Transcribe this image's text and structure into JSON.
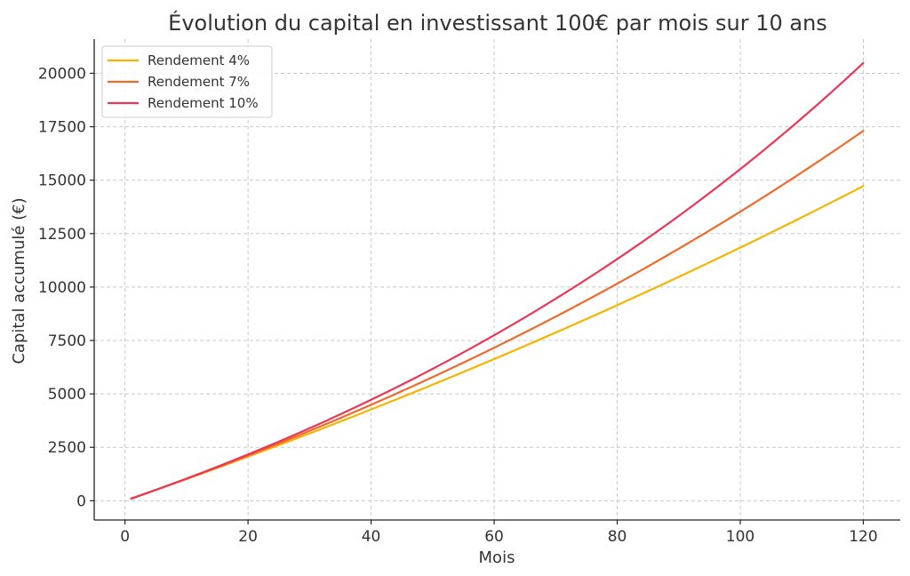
{
  "chart_data": {
    "type": "line",
    "title": "Évolution du capital en investissant 100€ par mois sur 10 ans",
    "xlabel": "Mois",
    "ylabel": "Capital accumulé (€)",
    "xlim": [
      -5,
      126
    ],
    "ylim": [
      -900,
      21600
    ],
    "xticks": [
      0,
      20,
      40,
      60,
      80,
      100,
      120
    ],
    "yticks": [
      0,
      2500,
      5000,
      7500,
      10000,
      12500,
      15000,
      17500,
      20000
    ],
    "grid": true,
    "legend_position": "top-left",
    "monthly_contribution": 100,
    "months": [
      1,
      120
    ],
    "series": [
      {
        "name": "Rendement 4%",
        "annual_rate": 0.04,
        "color": "#f5b400",
        "final_value": 14725
      },
      {
        "name": "Rendement 7%",
        "annual_rate": 0.07,
        "color": "#ee6a2a",
        "final_value": 17308
      },
      {
        "name": "Rendement 10%",
        "annual_rate": 0.1,
        "color": "#ea3657",
        "final_value": 20484
      }
    ]
  }
}
